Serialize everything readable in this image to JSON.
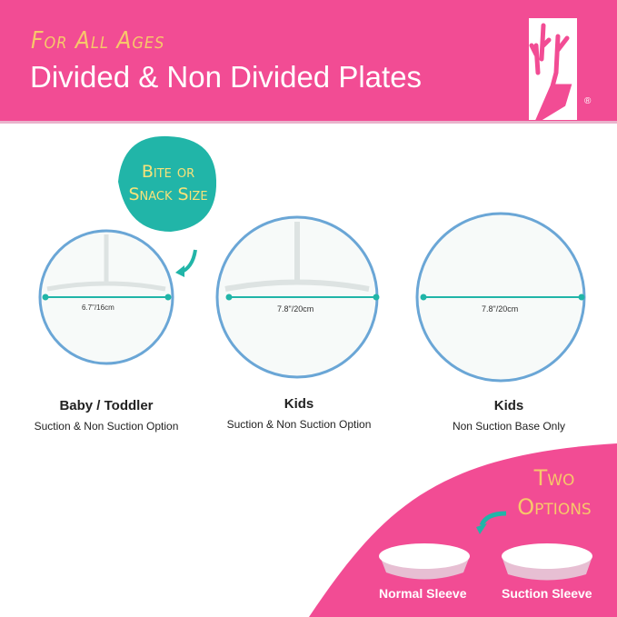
{
  "header": {
    "tagline": "For All Ages",
    "title": "Divided & Non Divided Plates",
    "logo": "deer-antler-logo",
    "registered": "®"
  },
  "colors": {
    "brand_pink": "#f24c94",
    "teal": "#21b5a8",
    "yellow": "#f7c86a",
    "rim_blue": "#6aa6d6"
  },
  "callout": {
    "line1": "Bite or",
    "line2": "Snack Size"
  },
  "plates": [
    {
      "measure": "6.7\"/16cm",
      "name": "Baby / Toddler",
      "detail": "Suction & Non Suction Option"
    },
    {
      "measure": "7.8\"/20cm",
      "name": "Kids",
      "detail": "Suction & Non Suction Option"
    },
    {
      "measure": "7.8\"/20cm",
      "name": "Kids",
      "detail": "Non Suction Base Only"
    }
  ],
  "options": {
    "line1": "Two",
    "line2": "Options",
    "normal": "Normal Sleeve",
    "suction": "Suction Sleeve"
  }
}
